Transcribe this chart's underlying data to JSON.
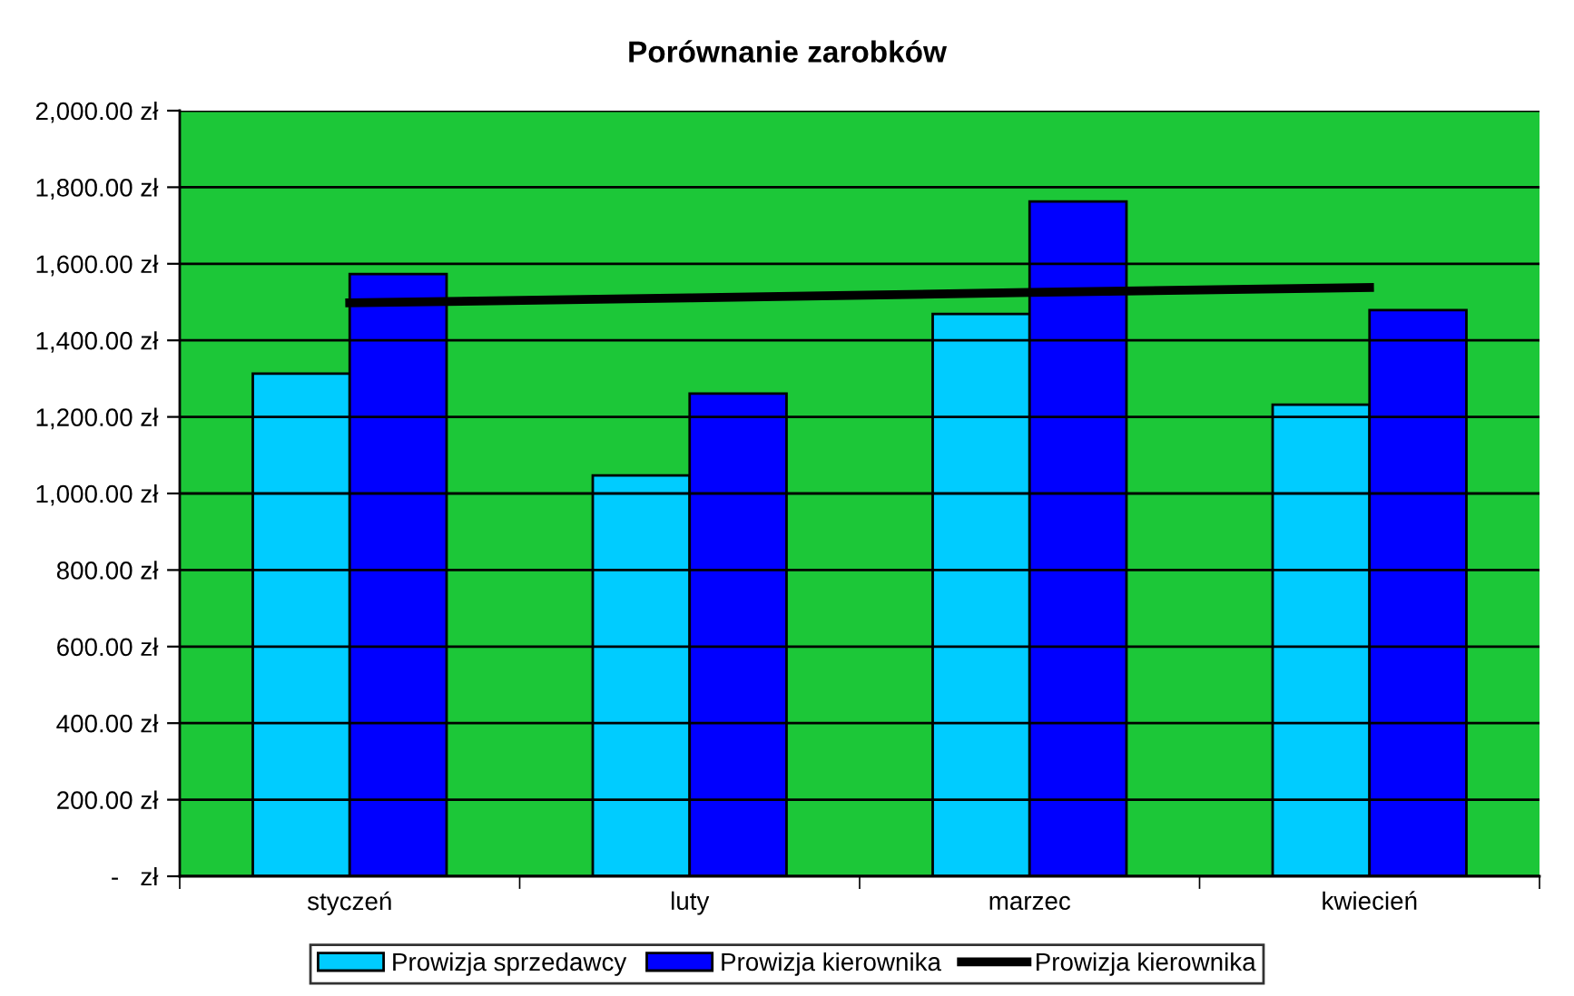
{
  "chart_data": {
    "type": "bar",
    "title": "Porównanie zarobków",
    "categories": [
      "styczeń",
      "luty",
      "marzec",
      "kwiecień"
    ],
    "series": [
      {
        "name": "Prowizja sprzedawcy",
        "color": "#00ccff",
        "values": [
          1313,
          1047,
          1469,
          1232
        ]
      },
      {
        "name": "Prowizja kierownika",
        "color": "#0000ff",
        "values": [
          1573,
          1261,
          1763,
          1479
        ]
      },
      {
        "name": "Prowizja kierownika",
        "type": "line",
        "color": "#000000",
        "values": [
          1498,
          1511,
          1525,
          1538
        ]
      }
    ],
    "ylim": [
      0,
      2000
    ],
    "yticks": [
      {
        "value": 0,
        "label": "-   zł"
      },
      {
        "value": 200,
        "label": "200.00 zł"
      },
      {
        "value": 400,
        "label": "400.00 zł"
      },
      {
        "value": 600,
        "label": "600.00 zł"
      },
      {
        "value": 800,
        "label": "800.00 zł"
      },
      {
        "value": 1000,
        "label": "1,000.00 zł"
      },
      {
        "value": 1200,
        "label": "1,200.00 zł"
      },
      {
        "value": 1400,
        "label": "1,400.00 zł"
      },
      {
        "value": 1600,
        "label": "1,600.00 zł"
      },
      {
        "value": 1800,
        "label": "1,800.00 zł"
      },
      {
        "value": 2000,
        "label": "2,000.00 zł"
      }
    ],
    "grid": "y",
    "legend": "bottom"
  }
}
